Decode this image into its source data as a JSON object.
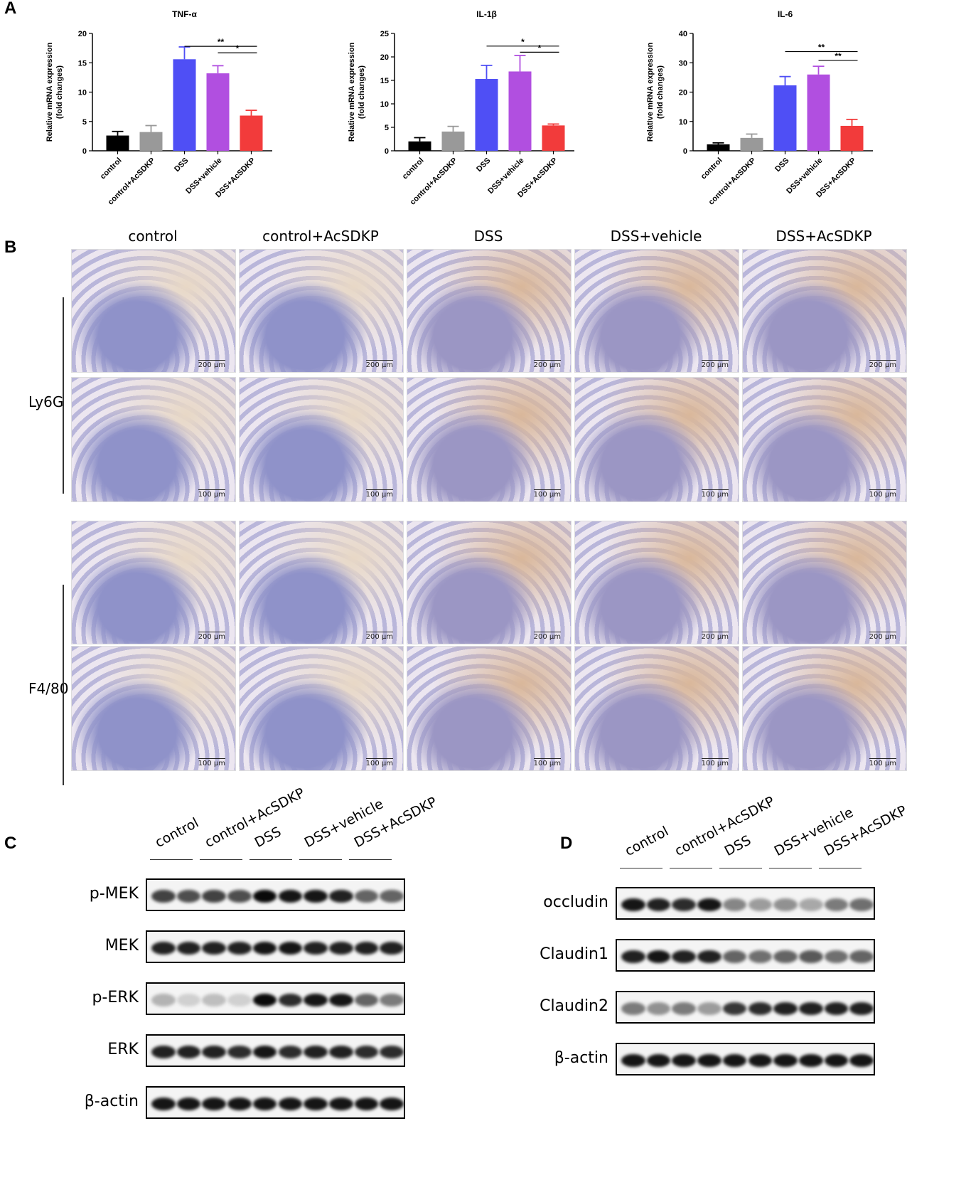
{
  "panels": {
    "a": "A",
    "b": "B",
    "c": "C",
    "d": "D"
  },
  "colors": {
    "control": "#000000",
    "control_acsdkp": "#999999",
    "dss": "#4f4ff5",
    "dss_vehicle": "#b14fe0",
    "dss_acsdkp": "#f23b3b"
  },
  "chart_data": [
    {
      "type": "bar",
      "title": "TNF-α",
      "ylabel": "Relative mRNA expression (fold changes)",
      "ylabel_lines": [
        "Relative mRNA expression",
        "(fold changes)"
      ],
      "ylim": [
        0,
        20
      ],
      "yticks": [
        "0",
        "5",
        "10",
        "15",
        "20"
      ],
      "categories": [
        "control",
        "control+AcSDKP",
        "DSS",
        "DSS+vehicle",
        "DSS+AcSDKP"
      ],
      "values": [
        2.6,
        3.2,
        15.6,
        13.2,
        6.0
      ],
      "errors": [
        0.7,
        1.1,
        2.1,
        1.3,
        0.9
      ],
      "significance": [
        {
          "from": 2,
          "to": 4,
          "label": "**",
          "level": 17.8
        },
        {
          "from": 3,
          "to": 4,
          "label": "*",
          "level": 16.7
        }
      ]
    },
    {
      "type": "bar",
      "title": "IL-1β",
      "ylabel": "Relative mRNA expression (fold changes)",
      "ylabel_lines": [
        "Relative mRNA expression",
        "(fold changes)"
      ],
      "ylim": [
        0,
        25
      ],
      "yticks": [
        "0",
        "5",
        "10",
        "15",
        "20",
        "25"
      ],
      "categories": [
        "control",
        "control+AcSDKP",
        "DSS",
        "DSS+vehicle",
        "DSS+AcSDKP"
      ],
      "values": [
        2.0,
        4.1,
        15.3,
        16.9,
        5.4
      ],
      "errors": [
        0.8,
        1.1,
        2.9,
        3.4,
        0.3
      ],
      "significance": [
        {
          "from": 2,
          "to": 4,
          "label": "*",
          "level": 22.3
        },
        {
          "from": 3,
          "to": 4,
          "label": "*",
          "level": 21.0
        }
      ]
    },
    {
      "type": "bar",
      "title": "IL-6",
      "ylabel": "Relative mRNA expression (fold changes)",
      "ylabel_lines": [
        "Relative mRNA expression",
        "(fold changes)"
      ],
      "ylim": [
        0,
        40
      ],
      "yticks": [
        "0",
        "10",
        "20",
        "30",
        "40"
      ],
      "categories": [
        "control",
        "control+AcSDKP",
        "DSS",
        "DSS+vehicle",
        "DSS+AcSDKP"
      ],
      "values": [
        2.2,
        4.4,
        22.3,
        26.0,
        8.5
      ],
      "errors": [
        0.5,
        1.3,
        3.0,
        2.8,
        2.2
      ],
      "significance": [
        {
          "from": 2,
          "to": 4,
          "label": "**",
          "level": 33.8
        },
        {
          "from": 3,
          "to": 4,
          "label": "**",
          "level": 30.8
        }
      ]
    }
  ],
  "histology": {
    "columns": [
      "control",
      "control+AcSDKP",
      "DSS",
      "DSS+vehicle",
      "DSS+AcSDKP"
    ],
    "rows": [
      "Ly6G",
      "F4/80"
    ],
    "scale_low": "200 μm",
    "scale_high": "100 μm"
  },
  "western_c": {
    "lanes": [
      "control",
      "control+AcSDKP",
      "DSS",
      "DSS+vehicle",
      "DSS+AcSDKP"
    ],
    "blots": [
      {
        "name": "p-MEK",
        "intensity": [
          0.75,
          0.7,
          0.75,
          0.7,
          1.0,
          0.95,
          0.95,
          0.9,
          0.6,
          0.6
        ]
      },
      {
        "name": "MEK",
        "intensity": [
          0.9,
          0.9,
          0.9,
          0.9,
          0.95,
          0.95,
          0.9,
          0.9,
          0.9,
          0.9
        ]
      },
      {
        "name": "p-ERK",
        "intensity": [
          0.25,
          0.12,
          0.2,
          0.12,
          1.0,
          0.85,
          0.95,
          0.95,
          0.6,
          0.5
        ]
      },
      {
        "name": "ERK",
        "intensity": [
          0.9,
          0.9,
          0.9,
          0.85,
          0.95,
          0.85,
          0.9,
          0.9,
          0.85,
          0.85
        ]
      },
      {
        "name": "β-actin",
        "intensity": [
          0.95,
          0.95,
          0.95,
          0.95,
          0.95,
          0.95,
          0.95,
          0.95,
          0.95,
          0.95
        ]
      }
    ]
  },
  "western_d": {
    "lanes": [
      "control",
      "control+AcSDKP",
      "DSS",
      "DSS+vehicle",
      "DSS+AcSDKP"
    ],
    "blots": [
      {
        "name": "occludin",
        "intensity": [
          0.95,
          0.9,
          0.85,
          0.95,
          0.45,
          0.35,
          0.4,
          0.3,
          0.5,
          0.55
        ]
      },
      {
        "name": "Claudin1",
        "intensity": [
          0.9,
          0.95,
          0.9,
          0.9,
          0.6,
          0.55,
          0.6,
          0.65,
          0.55,
          0.6
        ]
      },
      {
        "name": "Claudin2",
        "intensity": [
          0.5,
          0.4,
          0.5,
          0.35,
          0.8,
          0.85,
          0.9,
          0.9,
          0.9,
          0.9
        ]
      },
      {
        "name": "β-actin",
        "intensity": [
          0.95,
          0.95,
          0.95,
          0.95,
          0.95,
          0.95,
          0.95,
          0.95,
          0.95,
          0.95
        ]
      }
    ]
  }
}
